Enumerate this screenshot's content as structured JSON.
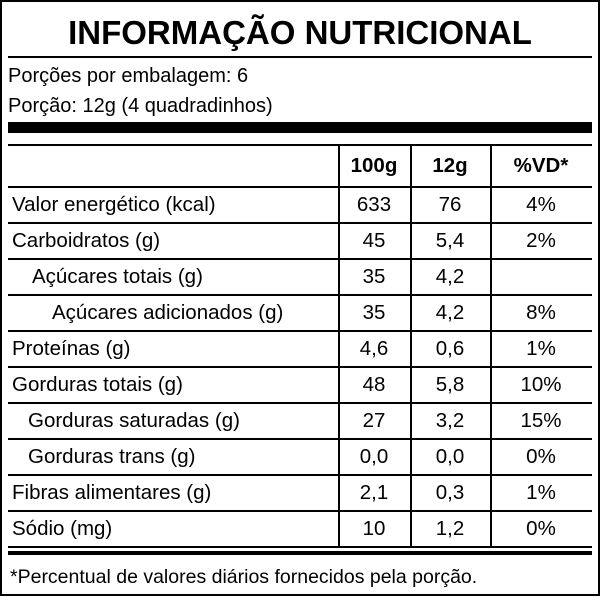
{
  "header": {
    "title": "INFORMAÇÃO NUTRICIONAL"
  },
  "serving": [
    "Porções por embalagem: 6",
    "Porção: 12g (4 quadradinhos)"
  ],
  "table": {
    "columns": [
      "100g",
      "12g",
      "%VD*"
    ],
    "rows": [
      [
        "Valor energético (kcal)",
        "633",
        "76",
        "4%"
      ],
      [
        "Carboidratos (g)",
        "45",
        "5,4",
        "2%"
      ],
      [
        "Açúcares totais (g)",
        "35",
        "4,2",
        null
      ],
      [
        "Açúcares adicionados (g)",
        "35",
        "4,2",
        "8%"
      ],
      [
        "Proteínas (g)",
        "4,6",
        "0,6",
        "1%"
      ],
      [
        "Gorduras totais (g)",
        "48",
        "5,8",
        "10%"
      ],
      [
        "Gorduras saturadas (g)",
        "27",
        "3,2",
        "15%"
      ],
      [
        "Gorduras trans (g)",
        "0,0",
        "0,0",
        "0%"
      ],
      [
        "Fibras alimentares (g)",
        "2,1",
        "0,3",
        "1%"
      ],
      [
        "Sódio (mg)",
        "10",
        "1,2",
        "0%"
      ]
    ]
  },
  "footnote": "*Percentual de valores diários fornecidos pela porção."
}
